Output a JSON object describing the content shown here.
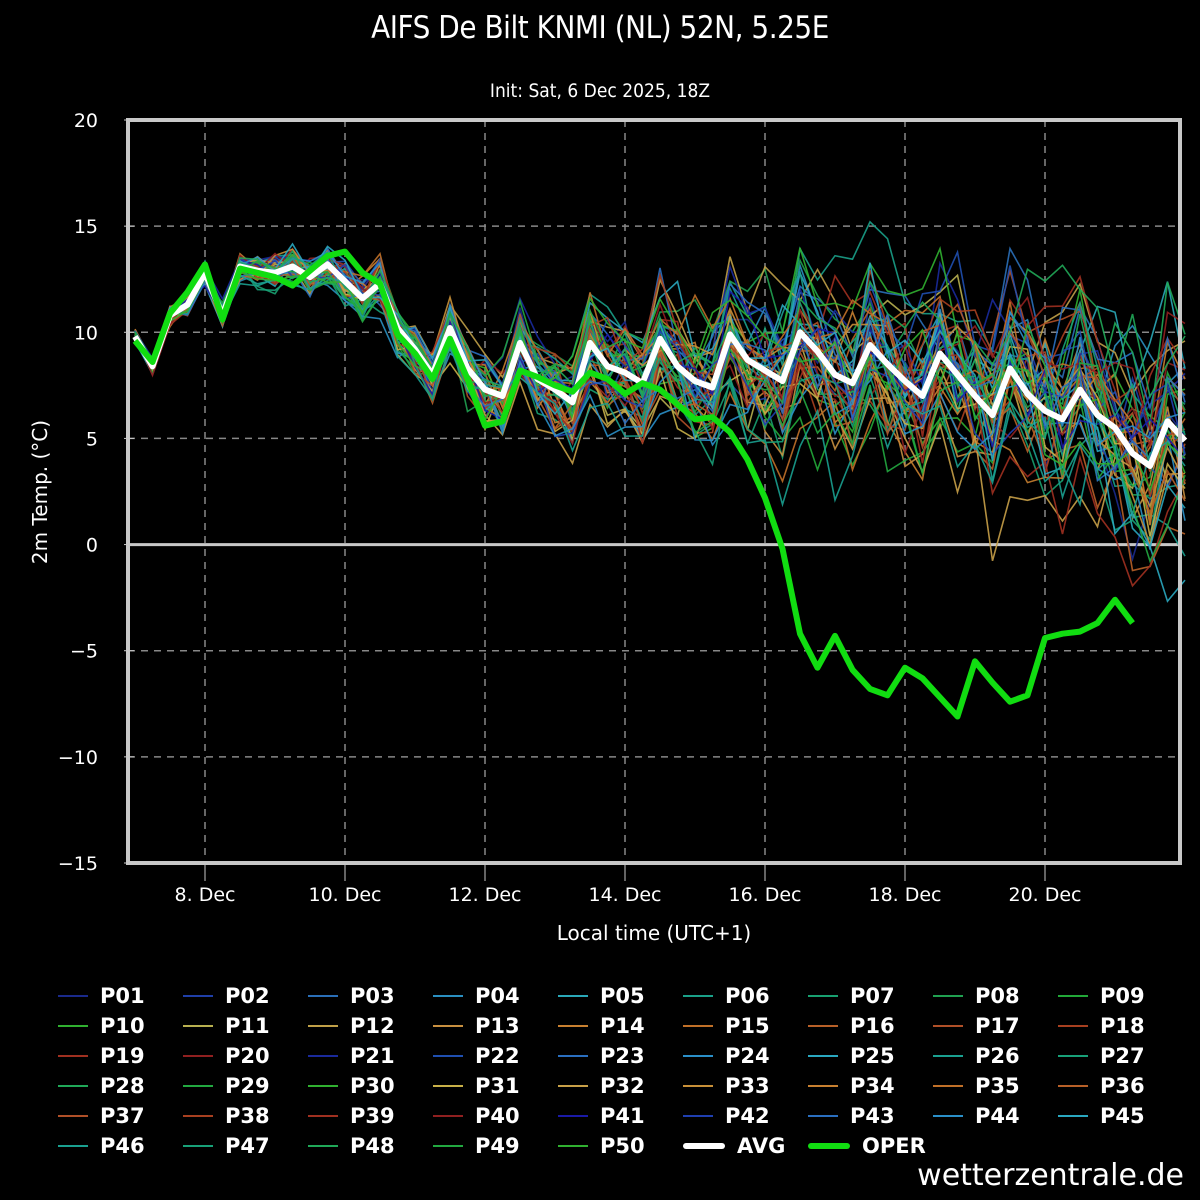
{
  "chart_data": {
    "type": "line",
    "title": "AIFS De Bilt KNMI (NL) 52N, 5.25E",
    "subtitle": "Init: Sat, 6 Dec 2025, 18Z",
    "xlabel": "Local time (UTC+1)",
    "ylabel": "2m Temp. (°C)",
    "ylim": [
      -15,
      20
    ],
    "yticks": [
      "20",
      "15",
      "10",
      "5",
      "0",
      "−5",
      "−10",
      "−15"
    ],
    "ytick_values": [
      20,
      15,
      10,
      5,
      0,
      -5,
      -10,
      -15
    ],
    "xlim_days": [
      6.86,
      21.9
    ],
    "xticks": [
      "8. Dec",
      "10. Dec",
      "12. Dec",
      "14. Dec",
      "16. Dec",
      "18. Dec",
      "20. Dec"
    ],
    "xtick_values_day": [
      8,
      10,
      12,
      14,
      16,
      18,
      20
    ],
    "x_start_day": 7.0,
    "x_step_hours": 6,
    "grid": true,
    "legend_placement": "bottom",
    "series": [
      {
        "name": "AVG",
        "color": "#ffffff",
        "values": [
          9.8,
          8.4,
          10.8,
          11.3,
          12.8,
          10.8,
          13.1,
          12.9,
          12.8,
          13.1,
          12.6,
          13.2,
          12.4,
          11.6,
          12.3,
          10.2,
          9.2,
          8.0,
          10.2,
          8.3,
          7.3,
          7.0,
          9.5,
          7.8,
          7.3,
          6.7,
          9.5,
          8.4,
          8.1,
          7.6,
          9.7,
          8.4,
          7.7,
          7.4,
          9.9,
          8.7,
          8.2,
          7.7,
          10.0,
          9.1,
          8.0,
          7.6,
          9.4,
          8.5,
          7.7,
          7.0,
          9.0,
          8.0,
          7.0,
          6.1,
          8.3,
          7.1,
          6.3,
          5.9,
          7.3,
          6.1,
          5.5,
          4.3,
          3.7,
          5.8,
          4.9
        ]
      },
      {
        "name": "OPER",
        "color": "#11dd11",
        "values": [
          9.6,
          8.6,
          10.9,
          11.9,
          13.2,
          10.6,
          13.0,
          12.8,
          12.6,
          12.2,
          12.9,
          13.6,
          13.8,
          12.8,
          12.3,
          9.9,
          9.0,
          7.8,
          9.7,
          7.8,
          5.6,
          5.8,
          8.2,
          7.9,
          7.5,
          7.2,
          8.1,
          7.8,
          7.1,
          7.6,
          7.3,
          6.6,
          5.9,
          6.0,
          5.3,
          4.0,
          2.2,
          -0.2,
          -4.2,
          -5.8,
          -4.3,
          -5.9,
          -6.8,
          -7.1,
          -5.8,
          -6.3,
          -7.2,
          -8.1,
          -5.5,
          -6.5,
          -7.4,
          -7.1,
          -4.4,
          -4.2,
          -4.1,
          -3.7,
          -2.6,
          -3.7
        ]
      }
    ],
    "members": [
      "P01",
      "P02",
      "P03",
      "P04",
      "P05",
      "P06",
      "P07",
      "P08",
      "P09",
      "P10",
      "P11",
      "P12",
      "P13",
      "P14",
      "P15",
      "P16",
      "P17",
      "P18",
      "P19",
      "P20",
      "P21",
      "P22",
      "P23",
      "P24",
      "P25",
      "P26",
      "P27",
      "P28",
      "P29",
      "P30",
      "P31",
      "P32",
      "P33",
      "P34",
      "P35",
      "P36",
      "P37",
      "P38",
      "P39",
      "P40",
      "P41",
      "P42",
      "P43",
      "P44",
      "P45",
      "P46",
      "P47",
      "P48",
      "P49",
      "P50"
    ],
    "member_colors": [
      "#1a2a8c",
      "#1f3fa8",
      "#2a6fb8",
      "#2a8fc0",
      "#2aa8b8",
      "#1aa088",
      "#18a070",
      "#20a050",
      "#22a838",
      "#30b030",
      "#b8b050",
      "#c0a048",
      "#c89040",
      "#c88030",
      "#c07028",
      "#b86028",
      "#b05028",
      "#a84020",
      "#a03020",
      "#902020",
      "#1a2a9c",
      "#1f4fb0",
      "#2a6fc0",
      "#2a8fc8",
      "#2aa8c0",
      "#1aa090",
      "#18a078",
      "#20a858",
      "#22a840",
      "#30b030",
      "#c8b048",
      "#c8a048",
      "#c89038",
      "#c88030",
      "#c07028",
      "#b86028",
      "#b05028",
      "#a84020",
      "#a03020",
      "#902020",
      "#1a1aa8",
      "#1f3fb0",
      "#2a6fc0",
      "#2a8fc8",
      "#2aa8c0",
      "#1aa090",
      "#18a078",
      "#20a858",
      "#22a840",
      "#30b030"
    ]
  },
  "legend": {
    "avg_label": "AVG",
    "oper_label": "OPER"
  },
  "watermark": "wetterzentrale.de"
}
